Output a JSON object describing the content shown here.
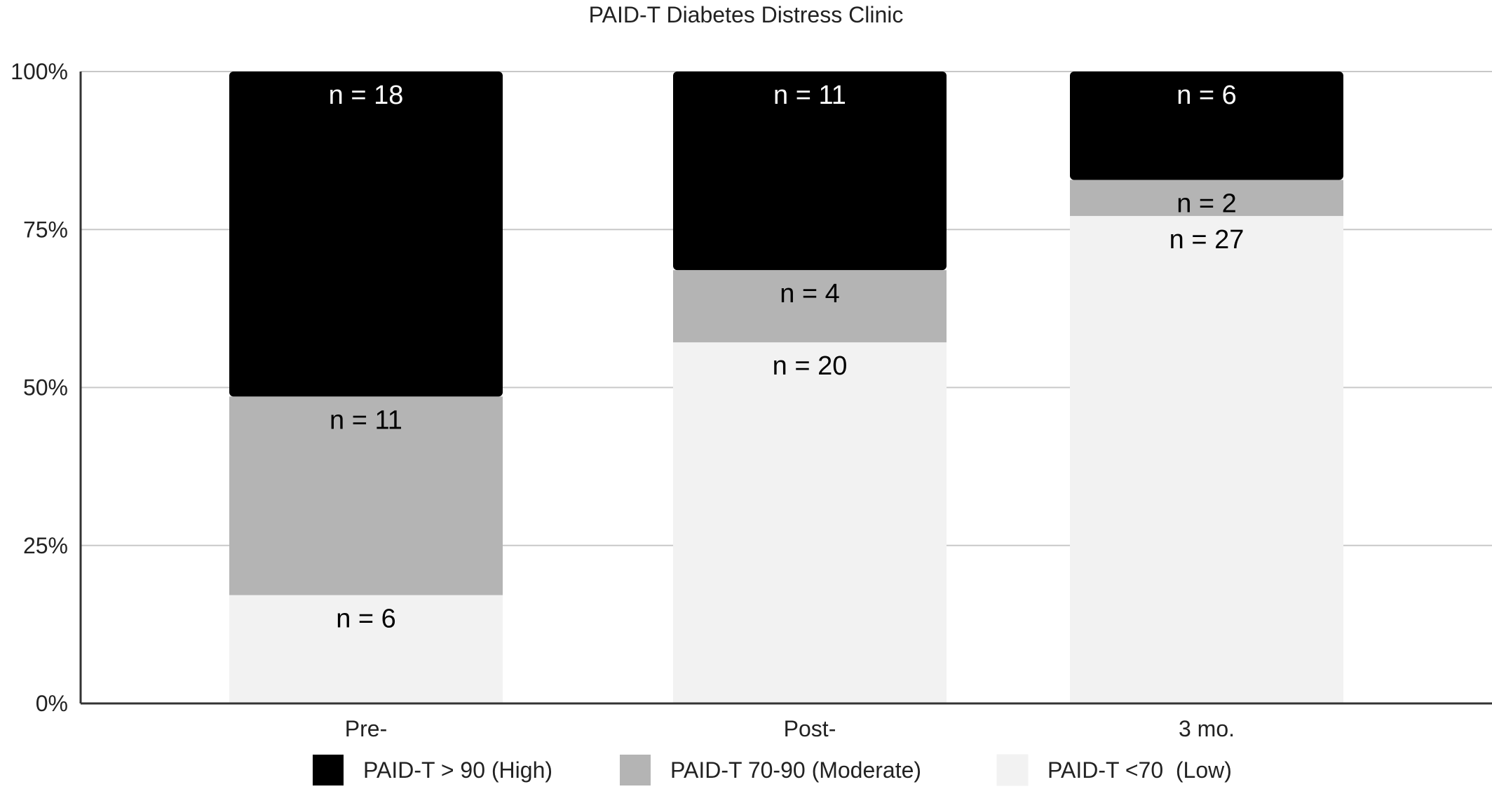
{
  "chart_data": {
    "type": "bar",
    "stacked": true,
    "normalized": true,
    "title": "PAID-T Diabetes Distress Clinic",
    "xlabel": "",
    "ylabel": "",
    "ylim": [
      0,
      100
    ],
    "yticks": [
      "0%",
      "25%",
      "50%",
      "75%",
      "100%"
    ],
    "categories": [
      "Pre-",
      "Post-",
      "3 mo."
    ],
    "series": [
      {
        "name": "PAID-T <70  (Low)",
        "color": "#f2f2f2",
        "label_color": "#000000",
        "values": [
          6,
          20,
          27
        ],
        "labels": [
          "n = 6",
          "n = 20",
          "n = 27"
        ]
      },
      {
        "name": "PAID-T 70-90 (Moderate)",
        "color": "#b4b4b4",
        "label_color": "#000000",
        "values": [
          11,
          4,
          2
        ],
        "labels": [
          "n = 11",
          "n = 4",
          "n = 2"
        ]
      },
      {
        "name": "PAID-T > 90 (High)",
        "color": "#000000",
        "label_color": "#ffffff",
        "values": [
          18,
          11,
          6
        ],
        "labels": [
          "n = 18",
          "n = 11",
          "n = 6"
        ]
      }
    ],
    "legend_order": [
      2,
      1,
      0
    ],
    "legend_position": "bottom",
    "grid": true
  }
}
